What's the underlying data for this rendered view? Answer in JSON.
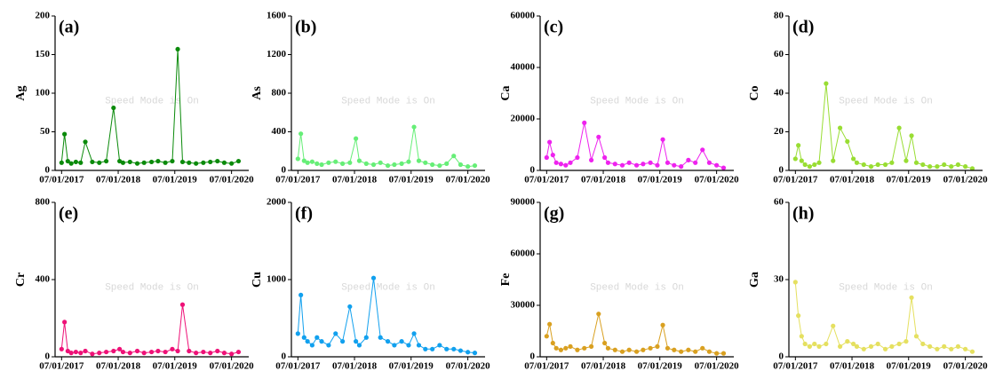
{
  "chart_data": [
    {
      "type": "line",
      "label": "(a)",
      "y_label": "Ag",
      "watermark": "Speed Mode is On",
      "color": "#0a8a0a",
      "x": [
        "2017-07-01",
        "2017-07-20",
        "2017-08-10",
        "2017-09-01",
        "2017-10-01",
        "2017-11-01",
        "2017-12-01",
        "2018-01-15",
        "2018-03-01",
        "2018-04-15",
        "2018-06-01",
        "2018-07-10",
        "2018-08-01",
        "2018-09-15",
        "2018-11-01",
        "2018-12-15",
        "2019-02-01",
        "2019-03-15",
        "2019-05-01",
        "2019-06-15",
        "2019-07-20",
        "2019-08-20",
        "2019-10-01",
        "2019-11-15",
        "2020-01-01",
        "2020-02-15",
        "2020-04-01",
        "2020-05-15",
        "2020-07-01",
        "2020-08-15"
      ],
      "values": [
        10,
        47,
        12,
        9,
        11,
        10,
        37,
        11,
        10,
        12,
        81,
        12,
        10,
        11,
        9,
        10,
        11,
        12,
        10,
        12,
        157,
        11,
        10,
        9,
        10,
        11,
        12,
        10,
        9,
        12
      ],
      "xlim": [
        "2017-05-20",
        "2020-10-20"
      ],
      "xticks": [
        {
          "value": "2017-07-01",
          "label": "07/01/2017"
        },
        {
          "value": "2018-07-01",
          "label": "07/01/2018"
        },
        {
          "value": "2019-07-01",
          "label": "07/01/2019"
        },
        {
          "value": "2020-07-01",
          "label": "07/01/2020"
        }
      ],
      "ylim": [
        0,
        200
      ],
      "yticks": [
        0,
        50,
        100,
        150,
        200
      ]
    },
    {
      "type": "line",
      "label": "(b)",
      "y_label": "As",
      "watermark": "Speed Mode is On",
      "color": "#66ee77",
      "x": [
        "2017-07-01",
        "2017-07-20",
        "2017-08-10",
        "2017-09-01",
        "2017-10-01",
        "2017-11-01",
        "2017-12-01",
        "2018-01-15",
        "2018-03-01",
        "2018-04-15",
        "2018-06-01",
        "2018-07-10",
        "2018-08-01",
        "2018-09-15",
        "2018-11-01",
        "2018-12-15",
        "2019-02-01",
        "2019-03-15",
        "2019-05-01",
        "2019-06-15",
        "2019-07-20",
        "2019-08-20",
        "2019-10-01",
        "2019-11-15",
        "2020-01-01",
        "2020-02-15",
        "2020-04-01",
        "2020-05-15",
        "2020-07-01",
        "2020-08-15"
      ],
      "values": [
        120,
        380,
        100,
        80,
        90,
        70,
        60,
        80,
        90,
        70,
        80,
        330,
        100,
        70,
        60,
        80,
        50,
        60,
        70,
        90,
        450,
        100,
        80,
        60,
        50,
        70,
        150,
        60,
        40,
        50
      ],
      "xlim": [
        "2017-05-20",
        "2020-10-20"
      ],
      "xticks": [
        {
          "value": "2017-07-01",
          "label": "07/01/2017"
        },
        {
          "value": "2018-07-01",
          "label": "07/01/2018"
        },
        {
          "value": "2019-07-01",
          "label": "07/01/2019"
        },
        {
          "value": "2020-07-01",
          "label": "07/01/2020"
        }
      ],
      "ylim": [
        0,
        1600
      ],
      "yticks": [
        0,
        400,
        800,
        1200,
        1600
      ]
    },
    {
      "type": "line",
      "label": "(c)",
      "y_label": "Ca",
      "watermark": "Speed Mode is On",
      "color": "#ee22ee",
      "x": [
        "2017-07-01",
        "2017-07-20",
        "2017-08-10",
        "2017-09-01",
        "2017-10-01",
        "2017-11-01",
        "2017-12-01",
        "2018-01-15",
        "2018-03-01",
        "2018-04-15",
        "2018-06-01",
        "2018-07-10",
        "2018-08-01",
        "2018-09-15",
        "2018-11-01",
        "2018-12-15",
        "2019-02-01",
        "2019-03-15",
        "2019-05-01",
        "2019-06-15",
        "2019-07-20",
        "2019-08-20",
        "2019-10-01",
        "2019-11-15",
        "2020-01-01",
        "2020-02-15",
        "2020-04-01",
        "2020-05-15",
        "2020-07-01",
        "2020-08-15"
      ],
      "values": [
        5000,
        11000,
        6000,
        3000,
        2500,
        2000,
        3000,
        5000,
        18500,
        4000,
        13000,
        5000,
        3000,
        2500,
        2000,
        3000,
        2000,
        2500,
        3000,
        2000,
        12000,
        3000,
        2000,
        1500,
        4000,
        3000,
        8000,
        3000,
        2000,
        1000
      ],
      "xlim": [
        "2017-05-20",
        "2020-10-20"
      ],
      "xticks": [
        {
          "value": "2017-07-01",
          "label": "07/01/2017"
        },
        {
          "value": "2018-07-01",
          "label": "07/01/2018"
        },
        {
          "value": "2019-07-01",
          "label": "07/01/2019"
        },
        {
          "value": "2020-07-01",
          "label": "07/01/2020"
        }
      ],
      "ylim": [
        0,
        60000
      ],
      "yticks": [
        0,
        20000,
        40000,
        60000
      ]
    },
    {
      "type": "line",
      "label": "(d)",
      "y_label": "Co",
      "watermark": "Speed Mode is On",
      "color": "#99dd33",
      "x": [
        "2017-07-01",
        "2017-07-20",
        "2017-08-10",
        "2017-09-01",
        "2017-10-01",
        "2017-11-01",
        "2017-12-01",
        "2018-01-15",
        "2018-03-01",
        "2018-04-15",
        "2018-06-01",
        "2018-07-10",
        "2018-08-01",
        "2018-09-15",
        "2018-11-01",
        "2018-12-15",
        "2019-02-01",
        "2019-03-15",
        "2019-05-01",
        "2019-06-15",
        "2019-07-20",
        "2019-08-20",
        "2019-10-01",
        "2019-11-15",
        "2020-01-01",
        "2020-02-15",
        "2020-04-01",
        "2020-05-15",
        "2020-07-01",
        "2020-08-15"
      ],
      "values": [
        6,
        13,
        5,
        3,
        2,
        3,
        4,
        45,
        5,
        22,
        15,
        6,
        4,
        3,
        2,
        3,
        3,
        4,
        22,
        5,
        18,
        4,
        3,
        2,
        2,
        3,
        2,
        3,
        2,
        1
      ],
      "xlim": [
        "2017-05-20",
        "2020-10-20"
      ],
      "xticks": [
        {
          "value": "2017-07-01",
          "label": "07/01/2017"
        },
        {
          "value": "2018-07-01",
          "label": "07/01/2018"
        },
        {
          "value": "2019-07-01",
          "label": "07/01/2019"
        },
        {
          "value": "2020-07-01",
          "label": "07/01/2020"
        }
      ],
      "ylim": [
        0,
        80
      ],
      "yticks": [
        0,
        20,
        40,
        60,
        80
      ]
    },
    {
      "type": "line",
      "label": "(e)",
      "y_label": "Cr",
      "watermark": "Speed Mode is On",
      "color": "#ee1177",
      "x": [
        "2017-07-01",
        "2017-07-20",
        "2017-08-10",
        "2017-09-01",
        "2017-10-01",
        "2017-11-01",
        "2017-12-01",
        "2018-01-15",
        "2018-03-01",
        "2018-04-15",
        "2018-06-01",
        "2018-07-10",
        "2018-08-01",
        "2018-09-15",
        "2018-11-01",
        "2018-12-15",
        "2019-02-01",
        "2019-03-15",
        "2019-05-01",
        "2019-06-15",
        "2019-07-20",
        "2019-08-20",
        "2019-10-01",
        "2019-11-15",
        "2020-01-01",
        "2020-02-15",
        "2020-04-01",
        "2020-05-15",
        "2020-07-01",
        "2020-08-15"
      ],
      "values": [
        40,
        180,
        30,
        20,
        25,
        20,
        30,
        15,
        20,
        25,
        30,
        40,
        25,
        20,
        30,
        20,
        25,
        30,
        25,
        40,
        30,
        270,
        30,
        20,
        25,
        20,
        30,
        20,
        15,
        25
      ],
      "xlim": [
        "2017-05-20",
        "2020-10-20"
      ],
      "xticks": [
        {
          "value": "2017-07-01",
          "label": "07/01/2017"
        },
        {
          "value": "2018-07-01",
          "label": "07/01/2018"
        },
        {
          "value": "2019-07-01",
          "label": "07/01/2019"
        },
        {
          "value": "2020-07-01",
          "label": "07/01/2020"
        }
      ],
      "ylim": [
        0,
        800
      ],
      "yticks": [
        0,
        400,
        800
      ]
    },
    {
      "type": "line",
      "label": "(f)",
      "y_label": "Cu",
      "watermark": "Speed Mode is On",
      "color": "#11a0ee",
      "x": [
        "2017-07-01",
        "2017-07-20",
        "2017-08-10",
        "2017-09-01",
        "2017-10-01",
        "2017-11-01",
        "2017-12-01",
        "2018-01-15",
        "2018-03-01",
        "2018-04-15",
        "2018-06-01",
        "2018-07-10",
        "2018-08-01",
        "2018-09-15",
        "2018-11-01",
        "2018-12-15",
        "2019-02-01",
        "2019-03-15",
        "2019-05-01",
        "2019-06-15",
        "2019-07-20",
        "2019-08-20",
        "2019-10-01",
        "2019-11-15",
        "2020-01-01",
        "2020-02-15",
        "2020-04-01",
        "2020-05-15",
        "2020-07-01",
        "2020-08-15"
      ],
      "values": [
        300,
        800,
        250,
        200,
        150,
        250,
        200,
        150,
        300,
        200,
        650,
        200,
        150,
        250,
        1020,
        250,
        200,
        150,
        200,
        150,
        300,
        150,
        100,
        100,
        150,
        100,
        100,
        80,
        60,
        50
      ],
      "xlim": [
        "2017-05-20",
        "2020-10-20"
      ],
      "xticks": [
        {
          "value": "2017-07-01",
          "label": "07/01/2017"
        },
        {
          "value": "2018-07-01",
          "label": "07/01/2018"
        },
        {
          "value": "2019-07-01",
          "label": "07/01/2019"
        },
        {
          "value": "2020-07-01",
          "label": "07/01/2020"
        }
      ],
      "ylim": [
        0,
        2000
      ],
      "yticks": [
        0,
        1000,
        2000
      ]
    },
    {
      "type": "line",
      "label": "(g)",
      "y_label": "Fe",
      "watermark": "Speed Mode is On",
      "color": "#d9a020",
      "x": [
        "2017-07-01",
        "2017-07-20",
        "2017-08-10",
        "2017-09-01",
        "2017-10-01",
        "2017-11-01",
        "2017-12-01",
        "2018-01-15",
        "2018-03-01",
        "2018-04-15",
        "2018-06-01",
        "2018-07-10",
        "2018-08-01",
        "2018-09-15",
        "2018-11-01",
        "2018-12-15",
        "2019-02-01",
        "2019-03-15",
        "2019-05-01",
        "2019-06-15",
        "2019-07-20",
        "2019-08-20",
        "2019-10-01",
        "2019-11-15",
        "2020-01-01",
        "2020-02-15",
        "2020-04-01",
        "2020-05-15",
        "2020-07-01",
        "2020-08-15"
      ],
      "values": [
        12000,
        19000,
        8000,
        5000,
        4000,
        5000,
        6000,
        4000,
        5000,
        6000,
        25000,
        8000,
        5000,
        4000,
        3000,
        4000,
        3000,
        4000,
        5000,
        6000,
        18500,
        5000,
        4000,
        3000,
        4000,
        3000,
        5000,
        3000,
        2000,
        2000
      ],
      "xlim": [
        "2017-05-20",
        "2020-10-20"
      ],
      "xticks": [
        {
          "value": "2017-07-01",
          "label": "07/01/2017"
        },
        {
          "value": "2018-07-01",
          "label": "07/01/2018"
        },
        {
          "value": "2019-07-01",
          "label": "07/01/2019"
        },
        {
          "value": "2020-07-01",
          "label": "07/01/2020"
        }
      ],
      "ylim": [
        0,
        90000
      ],
      "yticks": [
        0,
        30000,
        60000,
        90000
      ]
    },
    {
      "type": "line",
      "label": "(h)",
      "y_label": "Ga",
      "watermark": "Speed Mode is On",
      "color": "#e5e060",
      "x": [
        "2017-07-01",
        "2017-07-20",
        "2017-08-10",
        "2017-09-01",
        "2017-10-01",
        "2017-11-01",
        "2017-12-01",
        "2018-01-15",
        "2018-03-01",
        "2018-04-15",
        "2018-06-01",
        "2018-07-10",
        "2018-08-01",
        "2018-09-15",
        "2018-11-01",
        "2018-12-15",
        "2019-02-01",
        "2019-03-15",
        "2019-05-01",
        "2019-06-15",
        "2019-07-20",
        "2019-08-20",
        "2019-10-01",
        "2019-11-15",
        "2020-01-01",
        "2020-02-15",
        "2020-04-01",
        "2020-05-15",
        "2020-07-01",
        "2020-08-15"
      ],
      "values": [
        29,
        16,
        8,
        5,
        4,
        5,
        4,
        5,
        12,
        4,
        6,
        5,
        4,
        3,
        4,
        5,
        3,
        4,
        5,
        6,
        23,
        8,
        5,
        4,
        3,
        4,
        3,
        4,
        3,
        2
      ],
      "xlim": [
        "2017-05-20",
        "2020-10-20"
      ],
      "xticks": [
        {
          "value": "2017-07-01",
          "label": "07/01/2017"
        },
        {
          "value": "2018-07-01",
          "label": "07/01/2018"
        },
        {
          "value": "2019-07-01",
          "label": "07/01/2019"
        },
        {
          "value": "2020-07-01",
          "label": "07/01/2020"
        }
      ],
      "ylim": [
        0,
        60
      ],
      "yticks": [
        0,
        30,
        60
      ]
    }
  ]
}
